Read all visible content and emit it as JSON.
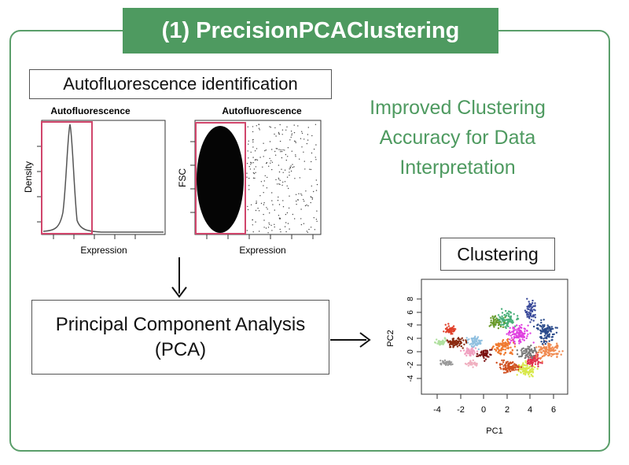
{
  "banner": {
    "title": "(1) PrecisionPCAClustering"
  },
  "autofluorescence_label": "Autofluorescence identification",
  "plot_density": {
    "title": "Autofluorescence",
    "xlabel": "Expression",
    "ylabel": "Density"
  },
  "plot_fsc": {
    "title": "Autofluorescence",
    "xlabel": "Expression",
    "ylabel": "FSC"
  },
  "tagline": {
    "line1": "Improved Clustering",
    "line2": "Accuracy for Data",
    "line3": "Interpretation"
  },
  "pca": {
    "line1": "Principal Component Analysis",
    "line2": "(PCA)"
  },
  "clustering_label": "Clustering",
  "cluster_plot": {
    "xlabel": "PC1",
    "ylabel": "PC2",
    "xticks": [
      "-4",
      "-2",
      "0",
      "2",
      "4",
      "6"
    ],
    "yticks": [
      "8",
      "6",
      "4",
      "2",
      "0",
      "-2",
      "-4"
    ]
  },
  "colors": {
    "accent": "#4e9a60",
    "gate": "#d0456b"
  }
}
